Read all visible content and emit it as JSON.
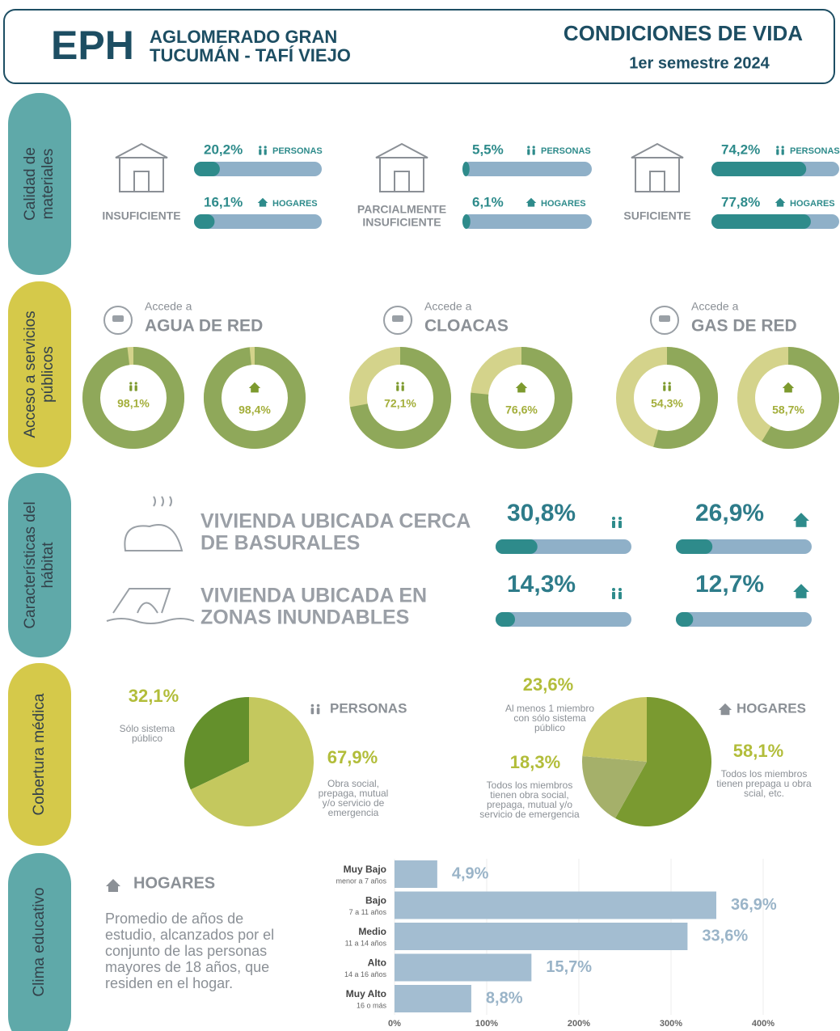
{
  "header": {
    "logo": "EPH",
    "region_line1": "AGLOMERADO GRAN",
    "region_line2": "TUCUMÁN - TAFÍ VIEJO",
    "title": "CONDICIONES DE VIDA",
    "period": "1er semestre 2024"
  },
  "materiales": {
    "label_lines": [
      "Calidad de",
      "materiales"
    ],
    "personas_label": "PERSONAS",
    "hogares_label": "HOGARES",
    "items": [
      {
        "name": [
          "INSUFICIENTE"
        ],
        "personas": {
          "value": 20.2,
          "label": "20,2%"
        },
        "hogares": {
          "value": 16.1,
          "label": "16,1%"
        }
      },
      {
        "name": [
          "PARCIALMENTE",
          "INSUFICIENTE"
        ],
        "personas": {
          "value": 5.5,
          "label": "5,5%"
        },
        "hogares": {
          "value": 6.1,
          "label": "6,1%"
        }
      },
      {
        "name": [
          "SUFICIENTE"
        ],
        "personas": {
          "value": 74.2,
          "label": "74,2%"
        },
        "hogares": {
          "value": 77.8,
          "label": "77,8%"
        }
      }
    ]
  },
  "servicios": {
    "label_lines": [
      "Acceso a servicios",
      "públicos"
    ],
    "prefix": "Accede a",
    "items": [
      {
        "name": "AGUA DE RED",
        "personas": {
          "value": 98.1,
          "label": "98,1%"
        },
        "hogares": {
          "value": 98.4,
          "label": "98,4%"
        }
      },
      {
        "name": "CLOACAS",
        "personas": {
          "value": 72.1,
          "label": "72,1%"
        },
        "hogares": {
          "value": 76.6,
          "label": "76,6%"
        }
      },
      {
        "name": "GAS DE RED",
        "personas": {
          "value": 54.3,
          "label": "54,3%"
        },
        "hogares": {
          "value": 58.7,
          "label": "58,7%"
        }
      }
    ]
  },
  "habitat": {
    "label_lines": [
      "Características del",
      "hábitat"
    ],
    "items": [
      {
        "name": [
          "VIVIENDA UBICADA CERCA",
          "DE BASURALES"
        ],
        "personas": {
          "value": 30.8,
          "label": "30,8%"
        },
        "hogares": {
          "value": 26.9,
          "label": "26,9%"
        }
      },
      {
        "name": [
          "VIVIENDA UBICADA EN",
          "ZONAS INUNDABLES"
        ],
        "personas": {
          "value": 14.3,
          "label": "14,3%"
        },
        "hogares": {
          "value": 12.7,
          "label": "12,7%"
        }
      }
    ]
  },
  "cobertura": {
    "label_lines": [
      "Cobertura médica"
    ],
    "personas": {
      "title": "PERSONAS",
      "slices": [
        {
          "value": 32.1,
          "label": "32,1%",
          "color": "#64902c",
          "desc": [
            "Sólo sistema",
            "público"
          ]
        },
        {
          "value": 67.9,
          "label": "67,9%",
          "color": "#c4c85e",
          "desc": [
            "Obra social,",
            "prepaga, mutual",
            "y/o servicio de",
            "emergencia"
          ]
        }
      ]
    },
    "hogares": {
      "title": "HOGARES",
      "slices": [
        {
          "value": 58.1,
          "label": "58,1%",
          "color": "#7a9a30",
          "desc": [
            "Todos los miembros",
            "tienen prepaga u obra",
            "scial, etc."
          ]
        },
        {
          "value": 18.3,
          "label": "18,3%",
          "color": "#a5b06a",
          "desc": [
            "Todos los miembros",
            "tienen obra social,",
            "prepaga, mutual y/o",
            "servicio de emergencia"
          ]
        },
        {
          "value": 23.6,
          "label": "23,6%",
          "color": "#c5c660",
          "desc": [
            "Al menos 1 miembro",
            "con sólo sistema",
            "público"
          ]
        }
      ]
    }
  },
  "clima": {
    "label_lines": [
      "Clima educativo"
    ],
    "heading": "HOGARES",
    "description": [
      "Promedio de años de",
      "estudio, alcanzados por el",
      "conjunto de las personas",
      "mayores de 18 años, que",
      "residen en el hogar."
    ],
    "bars": [
      {
        "name": "Muy Bajo",
        "sub": "menor a 7 años",
        "value": 4.9,
        "label": "4,9%"
      },
      {
        "name": "Bajo",
        "sub": "7 a 11 años",
        "value": 36.9,
        "label": "36,9%"
      },
      {
        "name": "Medio",
        "sub": "11 a 14 años",
        "value": 33.6,
        "label": "33,6%"
      },
      {
        "name": "Alto",
        "sub": "14 a 16 años",
        "value": 15.7,
        "label": "15,7%"
      },
      {
        "name": "Muy Alto",
        "sub": "16 o más",
        "value": 8.8,
        "label": "8,8%"
      }
    ],
    "axis_labels": [
      "0%",
      "100%",
      "200%",
      "300%",
      "400%"
    ]
  }
}
